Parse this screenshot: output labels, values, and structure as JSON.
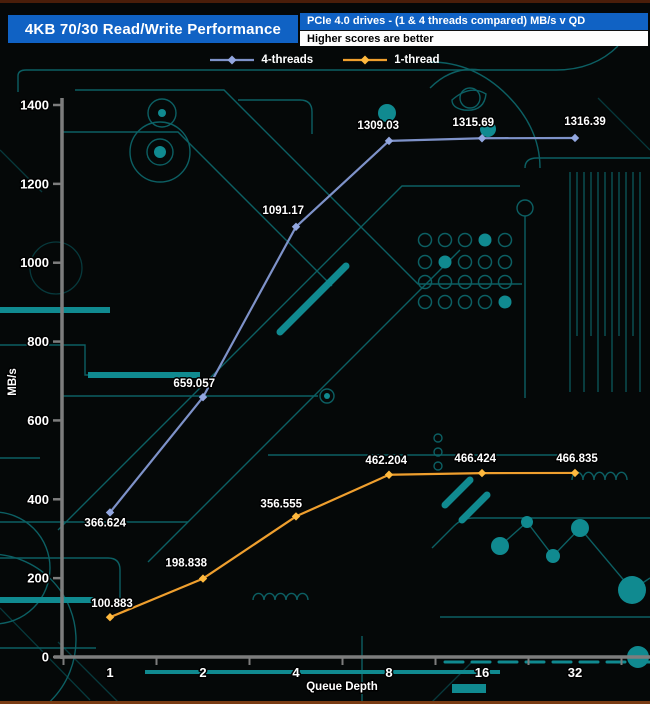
{
  "header": {
    "title": "4KB 70/30 Read/Write Performance",
    "subtitle": "PCIe 4.0 drives - (1 & 4 threads compared) MB/s v QD",
    "note": "Higher scores are better"
  },
  "colors": {
    "title_bar": "#1062c4",
    "axis": "#7d7d7d",
    "label": "#ffffff",
    "trace_teal": "#0c5f63",
    "trace_bright": "#108a90"
  },
  "chart_data": {
    "type": "line",
    "x": [
      1,
      2,
      4,
      8,
      16,
      32
    ],
    "x_scale": "log2-categorical",
    "xlabel": "Queue Depth",
    "ylabel": "MB/s",
    "ylim": [
      0,
      1400
    ],
    "yticks": [
      0,
      200,
      400,
      600,
      800,
      1000,
      1200,
      1400
    ],
    "grid": false,
    "legend_position": "top",
    "series": [
      {
        "name": "4-threads",
        "color": "#7e92c9",
        "marker_color": "#93a7e0",
        "values": [
          366.624,
          659.057,
          1091.17,
          1309.03,
          1315.69,
          1316.39
        ],
        "labels": [
          "366.624",
          "659.057",
          "1091.17",
          "1309.03",
          "1315.69",
          "1316.39"
        ]
      },
      {
        "name": "1-thread",
        "color": "#ef9f2e",
        "marker_color": "#ffb93e",
        "values": [
          100.883,
          198.838,
          356.555,
          462.204,
          466.424,
          466.835
        ],
        "labels": [
          "100.883",
          "198.838",
          "356.555",
          "462.204",
          "466.424",
          "466.835"
        ]
      }
    ]
  }
}
